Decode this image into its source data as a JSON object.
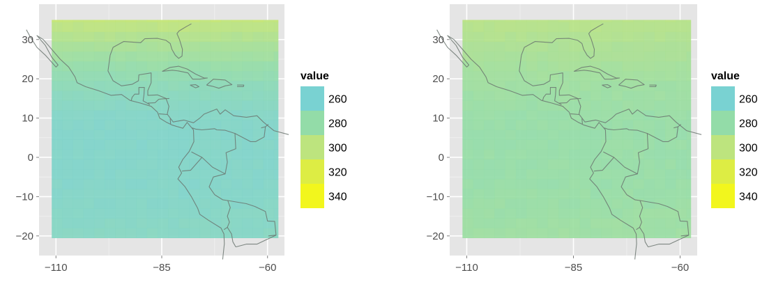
{
  "chart_data": [
    {
      "type": "heatmap",
      "x_ticks": [
        -110,
        -85,
        -60
      ],
      "y_ticks": [
        30,
        20,
        10,
        0,
        -10,
        -20
      ],
      "xlim": [
        -114,
        -56
      ],
      "ylim": [
        -25,
        39
      ],
      "grid": true,
      "legend_placement": "right",
      "legend": {
        "title": "value",
        "keys": [
          260,
          280,
          300,
          320,
          340
        ],
        "colors": [
          "#79d2d2",
          "#93dca8",
          "#bde47e",
          "#dded44",
          "#f2f61d"
        ]
      },
      "value_field": {
        "description_range": [
          263,
          305
        ],
        "ocean_base_south": 265,
        "north_edge": 303
      }
    },
    {
      "type": "heatmap",
      "x_ticks": [
        -110,
        -85,
        -60
      ],
      "y_ticks": [
        30,
        20,
        10,
        0,
        -10,
        -20
      ],
      "xlim": [
        -114,
        -56
      ],
      "ylim": [
        -25,
        39
      ],
      "grid": true,
      "legend_placement": "right",
      "legend": {
        "title": "value",
        "keys": [
          260,
          280,
          300,
          320,
          340
        ],
        "colors": [
          "#79d2d2",
          "#93dca8",
          "#bde47e",
          "#dded44",
          "#f2f61d"
        ]
      },
      "value_field": {
        "description_range": [
          275,
          298
        ],
        "ocean_base_south": 281,
        "north_edge": 297
      }
    }
  ],
  "colors": {
    "panel_background": "#e5e5e5",
    "grid_major": "#ffffff",
    "grid_minor": "#f2f2f2",
    "tick_text": "#4d4d4d",
    "coastline": "#6b7570"
  }
}
